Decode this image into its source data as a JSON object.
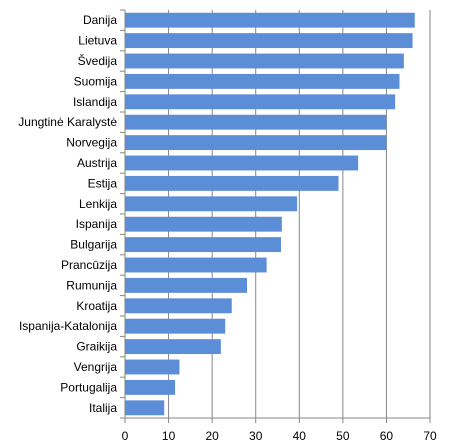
{
  "chart_data": {
    "type": "bar",
    "orientation": "horizontal",
    "categories": [
      "Danija",
      "Lietuva",
      "Švedija",
      "Suomija",
      "Islandija",
      "Jungtinė Karalystė",
      "Norvegija",
      "Austrija",
      "Estija",
      "Lenkija",
      "Ispanija",
      "Bulgarija",
      "Prancūzija",
      "Rumunija",
      "Kroatija",
      "Ispanija-Katalonija",
      "Graikija",
      "Vengrija",
      "Portugalija",
      "Italija"
    ],
    "values": [
      66.5,
      66,
      64,
      63,
      62,
      60,
      60,
      53.5,
      49,
      39.5,
      36,
      35.8,
      32.5,
      28,
      24.5,
      23,
      22,
      12.5,
      11.5,
      9
    ],
    "xlim": [
      0,
      70
    ],
    "xticks": [
      0,
      10,
      20,
      30,
      40,
      50,
      60,
      70
    ],
    "grid": "vertical",
    "legend": "none",
    "title": "",
    "xlabel": "",
    "ylabel": "",
    "colors": {
      "bar": "#5b8ed6",
      "grid": "#868686",
      "axis": "#868686",
      "text": "#000000"
    }
  }
}
